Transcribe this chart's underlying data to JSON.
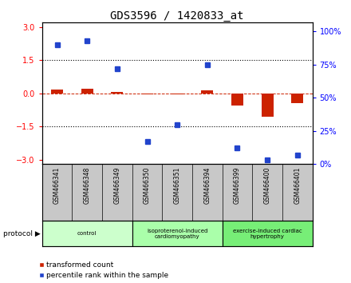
{
  "title": "GDS3596 / 1420833_at",
  "samples": [
    "GSM466341",
    "GSM466348",
    "GSM466349",
    "GSM466350",
    "GSM466351",
    "GSM466394",
    "GSM466399",
    "GSM466400",
    "GSM466401"
  ],
  "transformed_count": [
    0.18,
    0.22,
    0.08,
    -0.06,
    -0.04,
    0.15,
    -0.55,
    -1.05,
    -0.45
  ],
  "percentile_rank": [
    90,
    93,
    72,
    17,
    30,
    75,
    12,
    3,
    7
  ],
  "groups": [
    {
      "label": "control",
      "start": 0,
      "end": 3,
      "color": "#ccffcc"
    },
    {
      "label": "isoproterenol-induced\ncardiomyopathy",
      "start": 3,
      "end": 6,
      "color": "#aaffaa"
    },
    {
      "label": "exercise-induced cardiac\nhypertrophy",
      "start": 6,
      "end": 9,
      "color": "#77ee77"
    }
  ],
  "left_ylim": [
    -3.2,
    3.2
  ],
  "left_yticks": [
    -3,
    -1.5,
    0,
    1.5,
    3
  ],
  "right_ylim": [
    0,
    106.7
  ],
  "right_yticks": [
    0,
    25,
    50,
    75,
    100
  ],
  "right_yticklabels": [
    "0%",
    "25%",
    "50%",
    "75%",
    "100%"
  ],
  "bar_color_red": "#cc2200",
  "dot_color_blue": "#2244cc",
  "background_color": "#ffffff",
  "plot_bg_color": "#ffffff",
  "title_font_size": 10
}
